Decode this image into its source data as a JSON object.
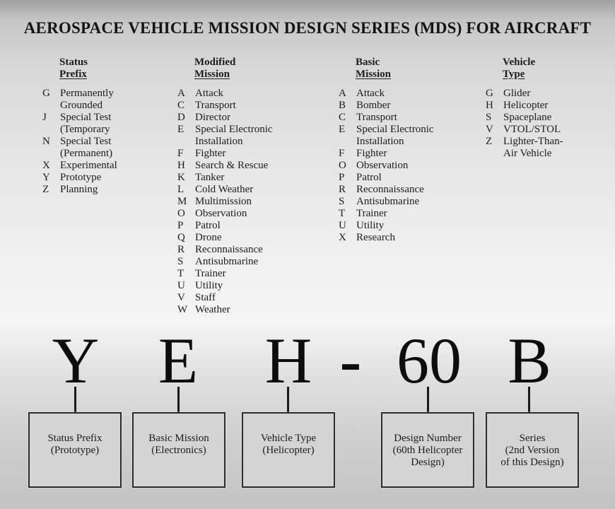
{
  "title": "AEROSPACE VEHICLE MISSION DESIGN SERIES (MDS) FOR AIRCRAFT",
  "columns": [
    {
      "header": [
        "Status",
        "Prefix"
      ],
      "entries": [
        {
          "code": "G",
          "label": "Permanently\nGrounded"
        },
        {
          "code": "J",
          "label": "Special Test\n(Temporary"
        },
        {
          "code": "N",
          "label": "Special Test\n(Permanent)"
        },
        {
          "code": "X",
          "label": "Experimental"
        },
        {
          "code": "Y",
          "label": "Prototype"
        },
        {
          "code": "Z",
          "label": "Planning"
        }
      ]
    },
    {
      "header": [
        "Modified",
        "Mission"
      ],
      "entries": [
        {
          "code": "A",
          "label": "Attack"
        },
        {
          "code": "C",
          "label": "Transport"
        },
        {
          "code": "D",
          "label": "Director"
        },
        {
          "code": "E",
          "label": "Special Electronic\nInstallation"
        },
        {
          "code": "F",
          "label": "Fighter"
        },
        {
          "code": "H",
          "label": "Search & Rescue"
        },
        {
          "code": "K",
          "label": "Tanker"
        },
        {
          "code": "L",
          "label": "Cold Weather"
        },
        {
          "code": "M",
          "label": "Multimission"
        },
        {
          "code": "O",
          "label": "Observation"
        },
        {
          "code": "P",
          "label": "Patrol"
        },
        {
          "code": "Q",
          "label": "Drone"
        },
        {
          "code": "R",
          "label": "Reconnaissance"
        },
        {
          "code": "S",
          "label": "Antisubmarine"
        },
        {
          "code": "T",
          "label": "Trainer"
        },
        {
          "code": "U",
          "label": "Utility"
        },
        {
          "code": "V",
          "label": "Staff"
        },
        {
          "code": "W",
          "label": "Weather"
        }
      ]
    },
    {
      "header": [
        "Basic",
        "Mission"
      ],
      "entries": [
        {
          "code": "A",
          "label": "Attack"
        },
        {
          "code": "B",
          "label": "Bomber"
        },
        {
          "code": "C",
          "label": "Transport"
        },
        {
          "code": "E",
          "label": "Special Electronic\nInstallation"
        },
        {
          "code": "F",
          "label": "Fighter"
        },
        {
          "code": "O",
          "label": "Observation"
        },
        {
          "code": "P",
          "label": "Patrol"
        },
        {
          "code": "R",
          "label": "Reconnaissance"
        },
        {
          "code": "S",
          "label": "Antisubmarine"
        },
        {
          "code": "T",
          "label": "Trainer"
        },
        {
          "code": "U",
          "label": "Utility"
        },
        {
          "code": "X",
          "label": "Research"
        }
      ]
    },
    {
      "header": [
        "Vehicle",
        "Type"
      ],
      "entries": [
        {
          "code": "G",
          "label": "Glider"
        },
        {
          "code": "H",
          "label": "Helicopter"
        },
        {
          "code": "S",
          "label": "Spaceplane"
        },
        {
          "code": "V",
          "label": "VTOL/STOL"
        },
        {
          "code": "Z",
          "label": "Lighter-Than-\nAir Vehicle"
        }
      ]
    }
  ],
  "designation": {
    "parts": [
      {
        "text": "Y"
      },
      {
        "text": "E"
      },
      {
        "text": "H"
      },
      {
        "text": "-"
      },
      {
        "text": "60"
      },
      {
        "text": "B"
      }
    ],
    "boxes": [
      {
        "label": "Status Prefix\n(Prototype)"
      },
      {
        "label": "Basic Mission\n(Electronics)"
      },
      {
        "label": "Vehicle Type\n(Helicopter)"
      },
      {
        "label": "Design Number\n(60th Helicopter\nDesign)"
      },
      {
        "label": "Series\n(2nd Version\nof this Design)"
      }
    ]
  }
}
